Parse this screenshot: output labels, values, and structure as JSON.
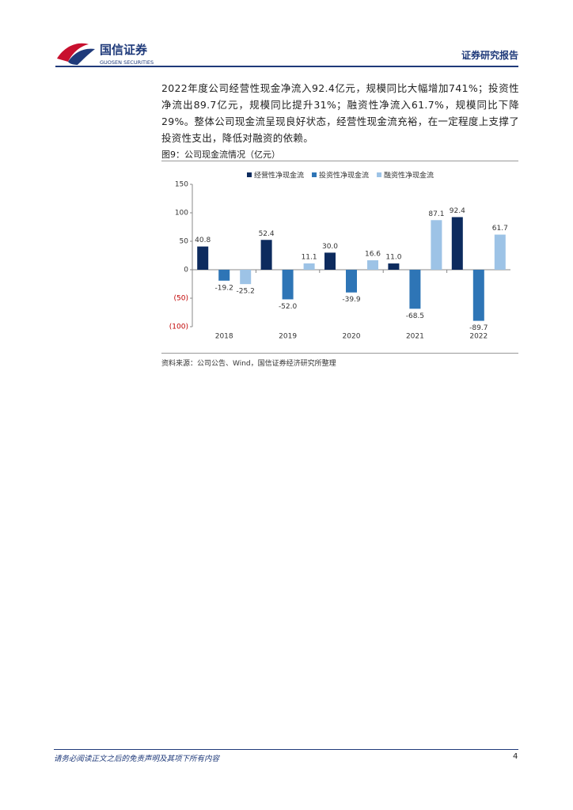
{
  "header": {
    "logo_cn": "国信证券",
    "logo_en": "GUOSEN SECURITIES",
    "report_type": "证券研究报告"
  },
  "body": {
    "paragraph": "2022年度公司经营性现金净流入92.4亿元，规模同比大幅增加741%；投资性净流出89.7亿元，规模同比提升31%；融资性净流入61.7%，规模同比下降29%。整体公司现金流呈现良好状态，经营性现金流充裕，在一定程度上支撑了投资性支出，降低对融资的依赖。"
  },
  "figure": {
    "caption": "图9：公司现金流情况（亿元）",
    "source": "资料来源：公司公告、Wind，国信证券经济研究所整理"
  },
  "chart_data": {
    "type": "bar",
    "categories": [
      "2018",
      "2019",
      "2020",
      "2021",
      "2022"
    ],
    "series": [
      {
        "name": "经营性净现金流",
        "color": "#0d2b5e",
        "values": [
          40.8,
          52.4,
          30.0,
          11.0,
          92.4
        ],
        "value_labels": [
          "40.8",
          "52.4",
          "30.0",
          "11.0",
          "92.4"
        ]
      },
      {
        "name": "投资性净现金流",
        "color": "#2e75b6",
        "values": [
          -19.2,
          -52.0,
          -39.9,
          -68.5,
          -89.7
        ],
        "value_labels": [
          "-19.2",
          "-52.0",
          "-39.9",
          "-68.5",
          "-89.7"
        ]
      },
      {
        "name": "融资性净现金流",
        "color": "#9dc3e6",
        "values": [
          -25.2,
          11.1,
          16.6,
          87.1,
          61.7
        ],
        "value_labels": [
          "-25.2",
          "11.1",
          "16.6",
          "87.1",
          "61.7"
        ]
      }
    ],
    "ylim": [
      -100,
      150
    ],
    "yticks": [
      {
        "value": -100,
        "label": "(100)"
      },
      {
        "value": -50,
        "label": "(50)"
      },
      0,
      50,
      100,
      150
    ],
    "negative_tick_color": "#c00000",
    "grid": false
  },
  "footer": {
    "disclaimer": "请务必阅读正文之后的免责声明及其项下所有内容",
    "page": "4"
  }
}
